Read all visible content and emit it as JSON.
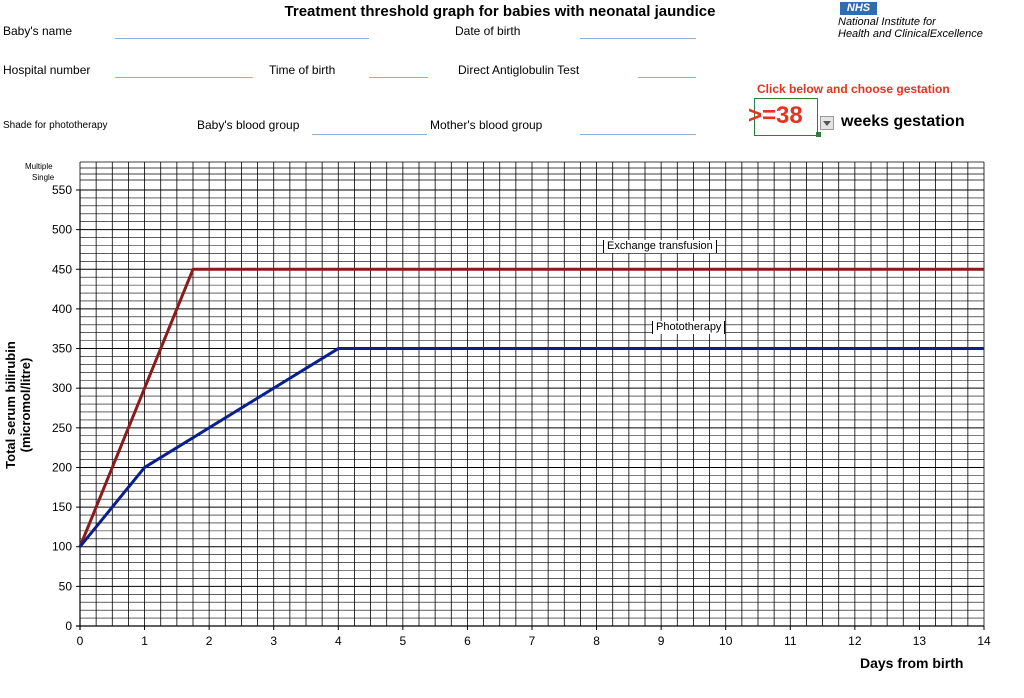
{
  "header": {
    "title": "Treatment threshold graph for babies with neonatal jaundice",
    "nhs_logo": "NHS",
    "nice_line1": "National Institute for",
    "nice_line2": "Health and ClinicalExcellence"
  },
  "form": {
    "babys_name_label": "Baby's name",
    "date_of_birth_label": "Date of birth",
    "hospital_number_label": "Hospital number",
    "time_of_birth_label": "Time of birth",
    "dat_label": "Direct Antiglobulin Test",
    "shade_label": "Shade for phototherapy",
    "babys_blood_group_label": "Baby's blood group",
    "mothers_blood_group_label": "Mother's blood group"
  },
  "gestation": {
    "instruction": "Click below and choose gestation",
    "value": ">=38",
    "suffix": "weeks gestation"
  },
  "rows": {
    "multiple": "Multiple",
    "single": "Single"
  },
  "colors": {
    "exchange": "#8b1a1a",
    "phototherapy": "#0a1f8f",
    "gestation_text": "#e8321e"
  },
  "chart_data": {
    "type": "line",
    "xlabel": "Days from birth",
    "ylabel": "Total serum bilirubin  (micromol/litre)",
    "xlim": [
      0,
      14
    ],
    "ylim": [
      0,
      550
    ],
    "xticks": [
      "0",
      "1",
      "2",
      "3",
      "4",
      "5",
      "6",
      "7",
      "8",
      "9",
      "10",
      "11",
      "12",
      "13",
      "14"
    ],
    "yticks": [
      "0",
      "50",
      "100",
      "150",
      "200",
      "250",
      "300",
      "350",
      "400",
      "450",
      "500",
      "550"
    ],
    "grid": true,
    "series": [
      {
        "name": "Exchange transfusion",
        "x": [
          0,
          1.75,
          14
        ],
        "y": [
          100,
          450,
          450
        ]
      },
      {
        "name": "Phototherapy",
        "x": [
          0,
          1,
          4,
          14
        ],
        "y": [
          100,
          200,
          350,
          350
        ]
      }
    ]
  }
}
